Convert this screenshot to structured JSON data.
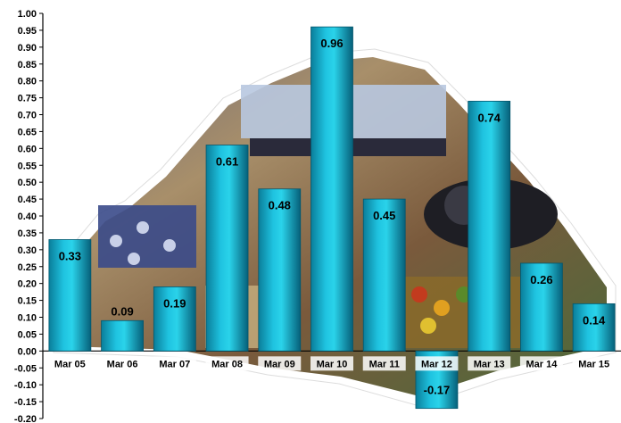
{
  "chart_data": {
    "type": "bar",
    "categories": [
      "Mar 05",
      "Mar 06",
      "Mar 07",
      "Mar 08",
      "Mar 09",
      "Mar 10",
      "Mar 11",
      "Mar 12",
      "Mar 13",
      "Mar 14",
      "Mar 15"
    ],
    "values": [
      0.33,
      0.09,
      0.19,
      0.61,
      0.48,
      0.96,
      0.45,
      -0.17,
      0.74,
      0.26,
      0.14
    ],
    "data_labels": [
      "0.33",
      "0.09",
      "0.19",
      "0.61",
      "0.48",
      "0.96",
      "0.45",
      "-0.17",
      "0.74",
      "0.26",
      "0.14"
    ],
    "yticks": [
      "1.00",
      "0.95",
      "0.90",
      "0.85",
      "0.80",
      "0.75",
      "0.70",
      "0.65",
      "0.60",
      "0.55",
      "0.50",
      "0.45",
      "0.40",
      "0.35",
      "0.30",
      "0.25",
      "0.20",
      "0.15",
      "0.10",
      "0.05",
      "0.00",
      "-0.05",
      "-0.10",
      "-0.15",
      "-0.20"
    ],
    "ylim": [
      -0.2,
      1.0
    ],
    "title": "",
    "xlabel": "",
    "ylabel": "",
    "grid": false,
    "legend": "none",
    "colors": {
      "bar_top": "#2ad3ea",
      "bar_mid": "#10a9c8",
      "bar_dark": "#06607a",
      "axis": "#000000"
    },
    "background": "photo collage (desk, telephone, fruit, bottles) with white torn outline"
  }
}
